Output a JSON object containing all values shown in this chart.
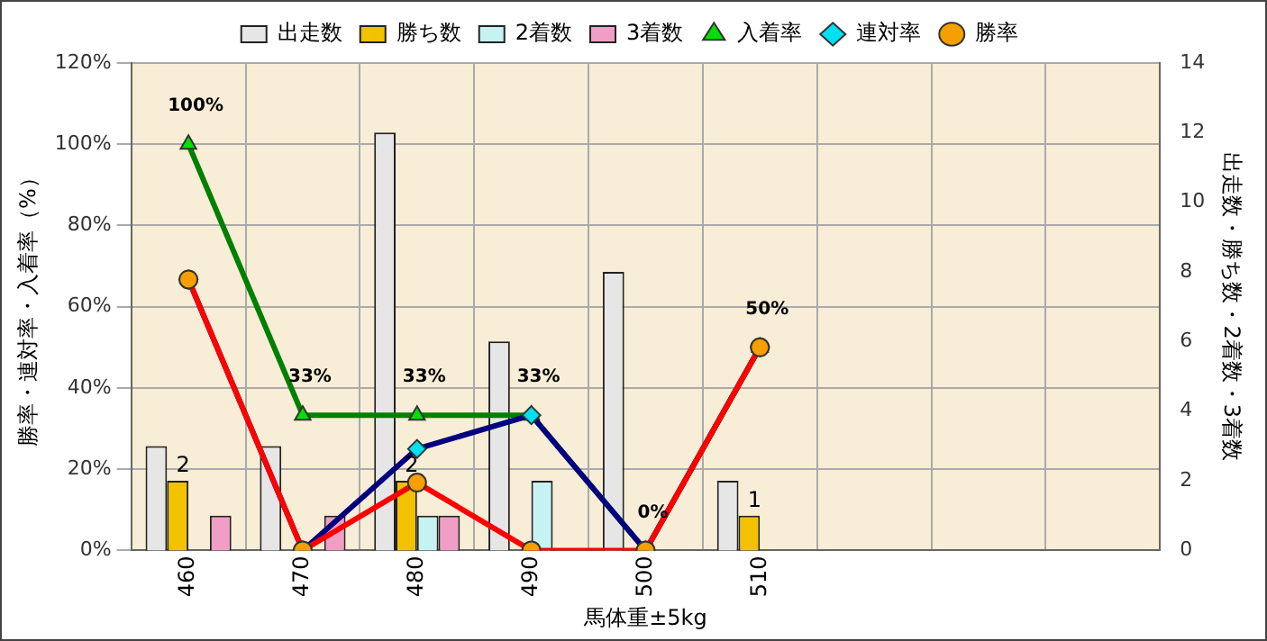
{
  "chart_data": {
    "type": "bar",
    "categories": [
      "460",
      "470",
      "480",
      "490",
      "500",
      "510",
      null,
      null,
      null
    ],
    "xlabel": "馬体重±5kg",
    "ylabel": "勝率・連対率・入着率（%）",
    "y2label": "出走数・勝ち数・2着数・3着数",
    "ylim": [
      0,
      120
    ],
    "yticks": [
      {
        "value": 0,
        "label": "0%"
      },
      {
        "value": 20,
        "label": "20%"
      },
      {
        "value": 40,
        "label": "40%"
      },
      {
        "value": 60,
        "label": "60%"
      },
      {
        "value": 80,
        "label": "80%"
      },
      {
        "value": 100,
        "label": "100%"
      },
      {
        "value": 120,
        "label": "120%"
      }
    ],
    "y2lim": [
      0,
      14
    ],
    "y2ticks": [
      0,
      2,
      4,
      6,
      8,
      10,
      12,
      14
    ],
    "grid": true,
    "legend": "top",
    "series": [
      {
        "name": "出走数",
        "axis": "y2",
        "color": "#e6e6e6",
        "values": [
          3,
          3,
          12,
          6,
          8,
          2,
          null,
          null,
          null
        ]
      },
      {
        "name": "勝ち数",
        "axis": "y2",
        "color": "#f2c200",
        "values": [
          2,
          0,
          2,
          0,
          0,
          1,
          null,
          null,
          null
        ],
        "value_labels": [
          "2",
          null,
          "2",
          null,
          null,
          "1",
          null,
          null,
          null
        ]
      },
      {
        "name": "2着数",
        "axis": "y2",
        "color": "#c6f2f2",
        "values": [
          0,
          0,
          1,
          2,
          0,
          0,
          null,
          null,
          null
        ]
      },
      {
        "name": "3着数",
        "axis": "y2",
        "color": "#f09ec6",
        "values": [
          1,
          1,
          1,
          0,
          0,
          0,
          null,
          null,
          null
        ]
      },
      {
        "name": "入着率",
        "type": "line",
        "color": "#008000",
        "marker": "triangle",
        "values": [
          100,
          33.3,
          33.3,
          33.3,
          0,
          50,
          null,
          null,
          null
        ],
        "value_labels": [
          "100%",
          "33%",
          "33%",
          "33%",
          "0%",
          "50%",
          null,
          null,
          null
        ]
      },
      {
        "name": "連対率",
        "type": "line",
        "color": "#000080",
        "marker": "diamond",
        "values": [
          66.7,
          0,
          25,
          33.3,
          0,
          50,
          null,
          null,
          null
        ]
      },
      {
        "name": "勝率",
        "type": "line",
        "color": "#ff0000",
        "marker": "circle",
        "values": [
          66.7,
          0,
          16.7,
          0,
          0,
          50,
          null,
          null,
          null
        ]
      }
    ]
  }
}
